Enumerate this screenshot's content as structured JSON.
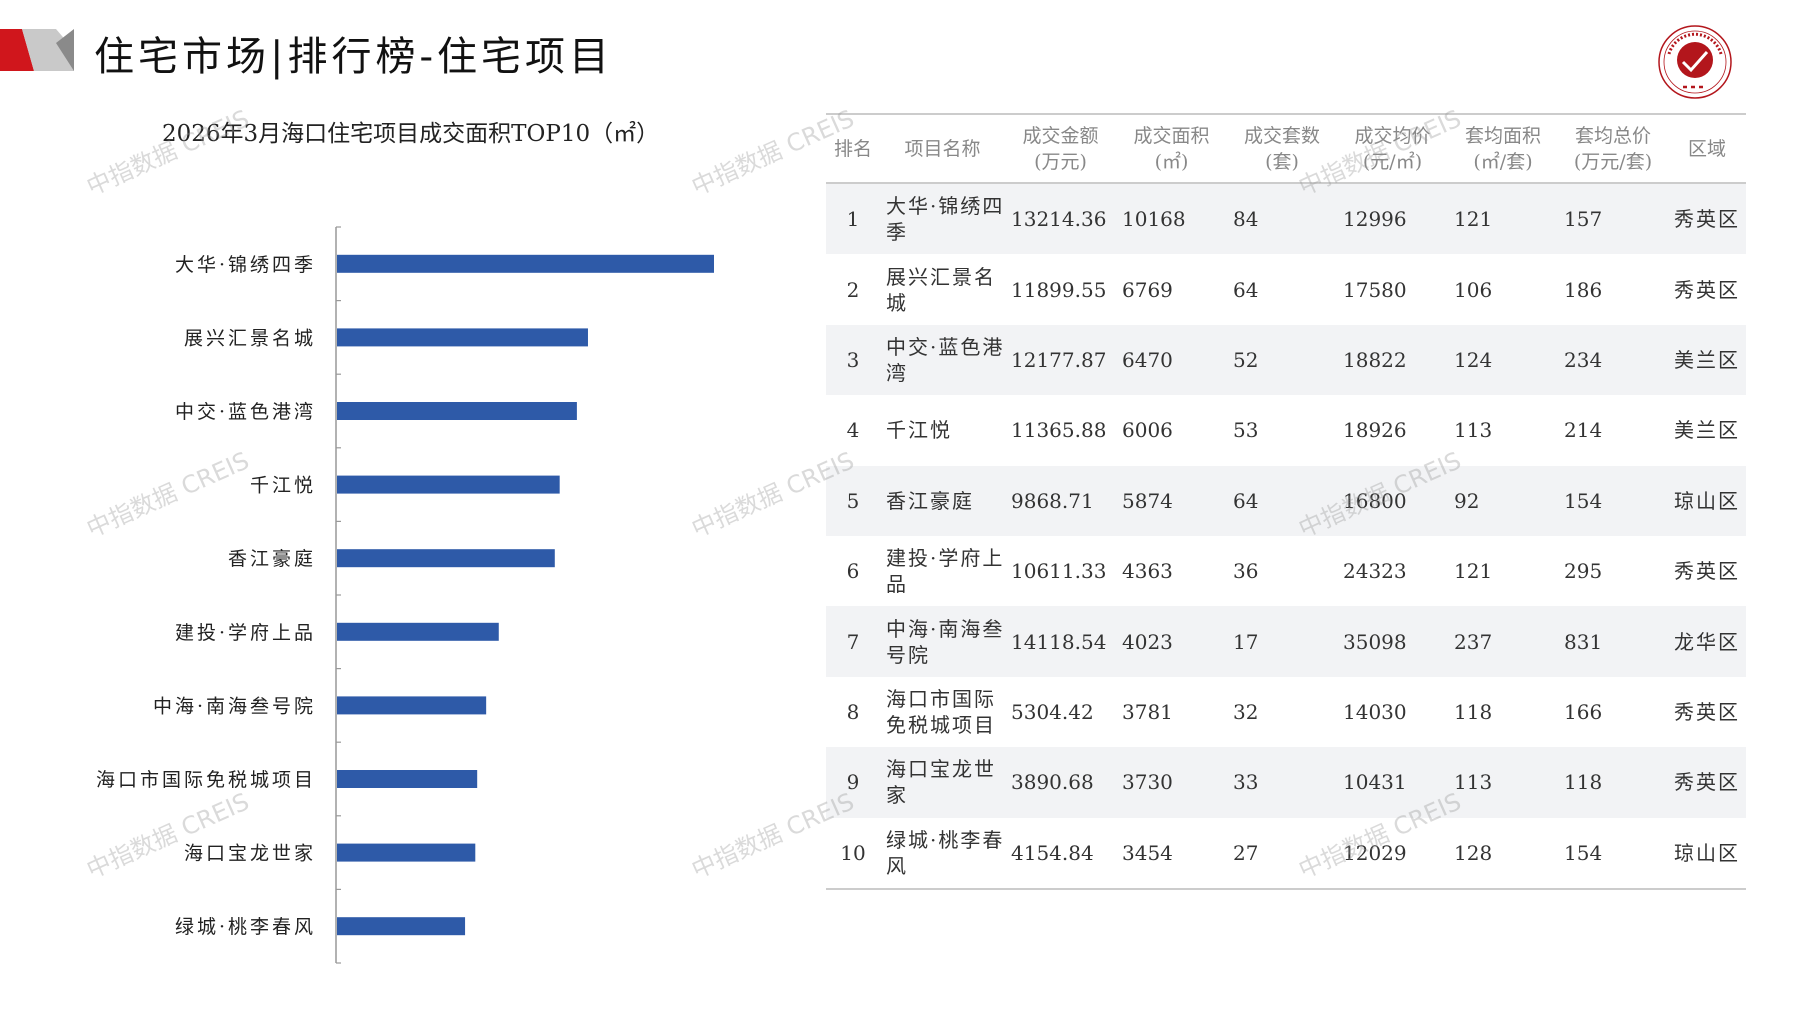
{
  "header": {
    "title": "住宅市场|排行榜-住宅项目",
    "logo_text": "CHINA INDEX ACADEMY 中指研究院",
    "accent_color": "#d0161c"
  },
  "watermark": "中指数据 CREIS",
  "chart_data": {
    "type": "bar",
    "orientation": "horizontal",
    "title": "2026年3月海口住宅项目成交面积TOP10（㎡）",
    "categories": [
      "大华·锦绣四季",
      "展兴汇景名城",
      "中交·蓝色港湾",
      "千江悦",
      "香江豪庭",
      "建投·学府上品",
      "中海·南海叁号院",
      "海口市国际免税城项目",
      "海口宝龙世家",
      "绿城·桃李春风"
    ],
    "values": [
      10168,
      6769,
      6470,
      6006,
      5874,
      4363,
      4023,
      3781,
      3730,
      3454
    ],
    "xlim": [
      0,
      14000
    ],
    "bar_color": "#2e5aa8",
    "grid": false,
    "legend": "none"
  },
  "table": {
    "headers": [
      [
        "排名"
      ],
      [
        "项目名称"
      ],
      [
        "成交金额",
        "(万元)"
      ],
      [
        "成交面积",
        "(㎡)"
      ],
      [
        "成交套数",
        "(套)"
      ],
      [
        "成交均价",
        "(元/㎡)"
      ],
      [
        "套均面积",
        "(㎡/套)"
      ],
      [
        "套均总价",
        "(万元/套)"
      ],
      [
        "区域"
      ]
    ],
    "rows": [
      [
        "1",
        "大华·锦绣四季",
        "13214.36",
        "10168",
        "84",
        "12996",
        "121",
        "157",
        "秀英区"
      ],
      [
        "2",
        "展兴汇景名城",
        "11899.55",
        "6769",
        "64",
        "17580",
        "106",
        "186",
        "秀英区"
      ],
      [
        "3",
        "中交·蓝色港湾",
        "12177.87",
        "6470",
        "52",
        "18822",
        "124",
        "234",
        "美兰区"
      ],
      [
        "4",
        "千江悦",
        "11365.88",
        "6006",
        "53",
        "18926",
        "113",
        "214",
        "美兰区"
      ],
      [
        "5",
        "香江豪庭",
        "9868.71",
        "5874",
        "64",
        "16800",
        "92",
        "154",
        "琼山区"
      ],
      [
        "6",
        "建投·学府上品",
        "10611.33",
        "4363",
        "36",
        "24323",
        "121",
        "295",
        "秀英区"
      ],
      [
        "7",
        "中海·南海叁号院",
        "14118.54",
        "4023",
        "17",
        "35098",
        "237",
        "831",
        "龙华区"
      ],
      [
        "8",
        "海口市国际免税城项目",
        "5304.42",
        "3781",
        "32",
        "14030",
        "118",
        "166",
        "秀英区"
      ],
      [
        "9",
        "海口宝龙世家",
        "3890.68",
        "3730",
        "33",
        "10431",
        "113",
        "118",
        "秀英区"
      ],
      [
        "10",
        "绿城·桃李春风",
        "4154.84",
        "3454",
        "27",
        "12029",
        "128",
        "154",
        "琼山区"
      ]
    ]
  }
}
